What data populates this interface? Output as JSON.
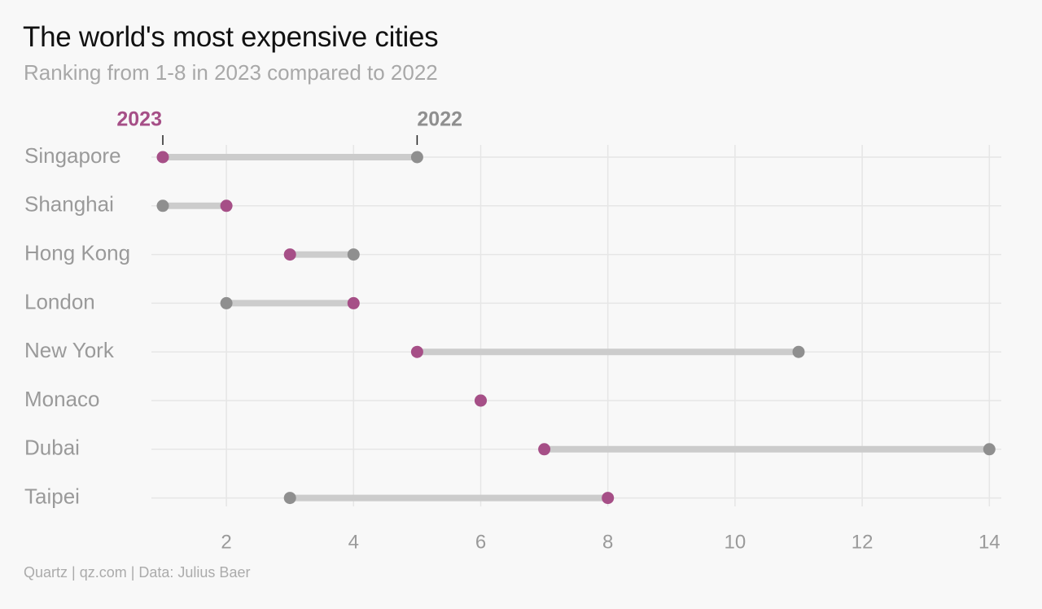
{
  "header": {
    "title": "The world's most expensive cities",
    "subtitle": "Ranking from 1-8 in 2023 compared to 2022"
  },
  "footer": {
    "source": "Quartz | qz.com | Data: Julius Baer"
  },
  "colors": {
    "2023": "#a64f87",
    "2022": "#8f8f8f",
    "connector": "#cccccc",
    "grid": "#e6e6e6",
    "background": "#f8f8f8"
  },
  "chart_data": {
    "type": "dumbbell",
    "title": "The world's most expensive cities",
    "subtitle": "Ranking from 1-8 in 2023 compared to 2022",
    "xlabel": "",
    "ylabel": "",
    "xlim": [
      0.9,
      14.2
    ],
    "xticks": [
      2,
      4,
      6,
      8,
      10,
      12,
      14
    ],
    "grid": true,
    "legend": "top",
    "categories": [
      "Singapore",
      "Shanghai",
      "Hong Kong",
      "London",
      "New York",
      "Monaco",
      "Dubai",
      "Taipei"
    ],
    "series": [
      {
        "name": "2023",
        "values": [
          1,
          2,
          3,
          4,
          5,
          6,
          7,
          8
        ]
      },
      {
        "name": "2022",
        "values": [
          5,
          1,
          4,
          2,
          11,
          6,
          14,
          3
        ]
      }
    ]
  }
}
